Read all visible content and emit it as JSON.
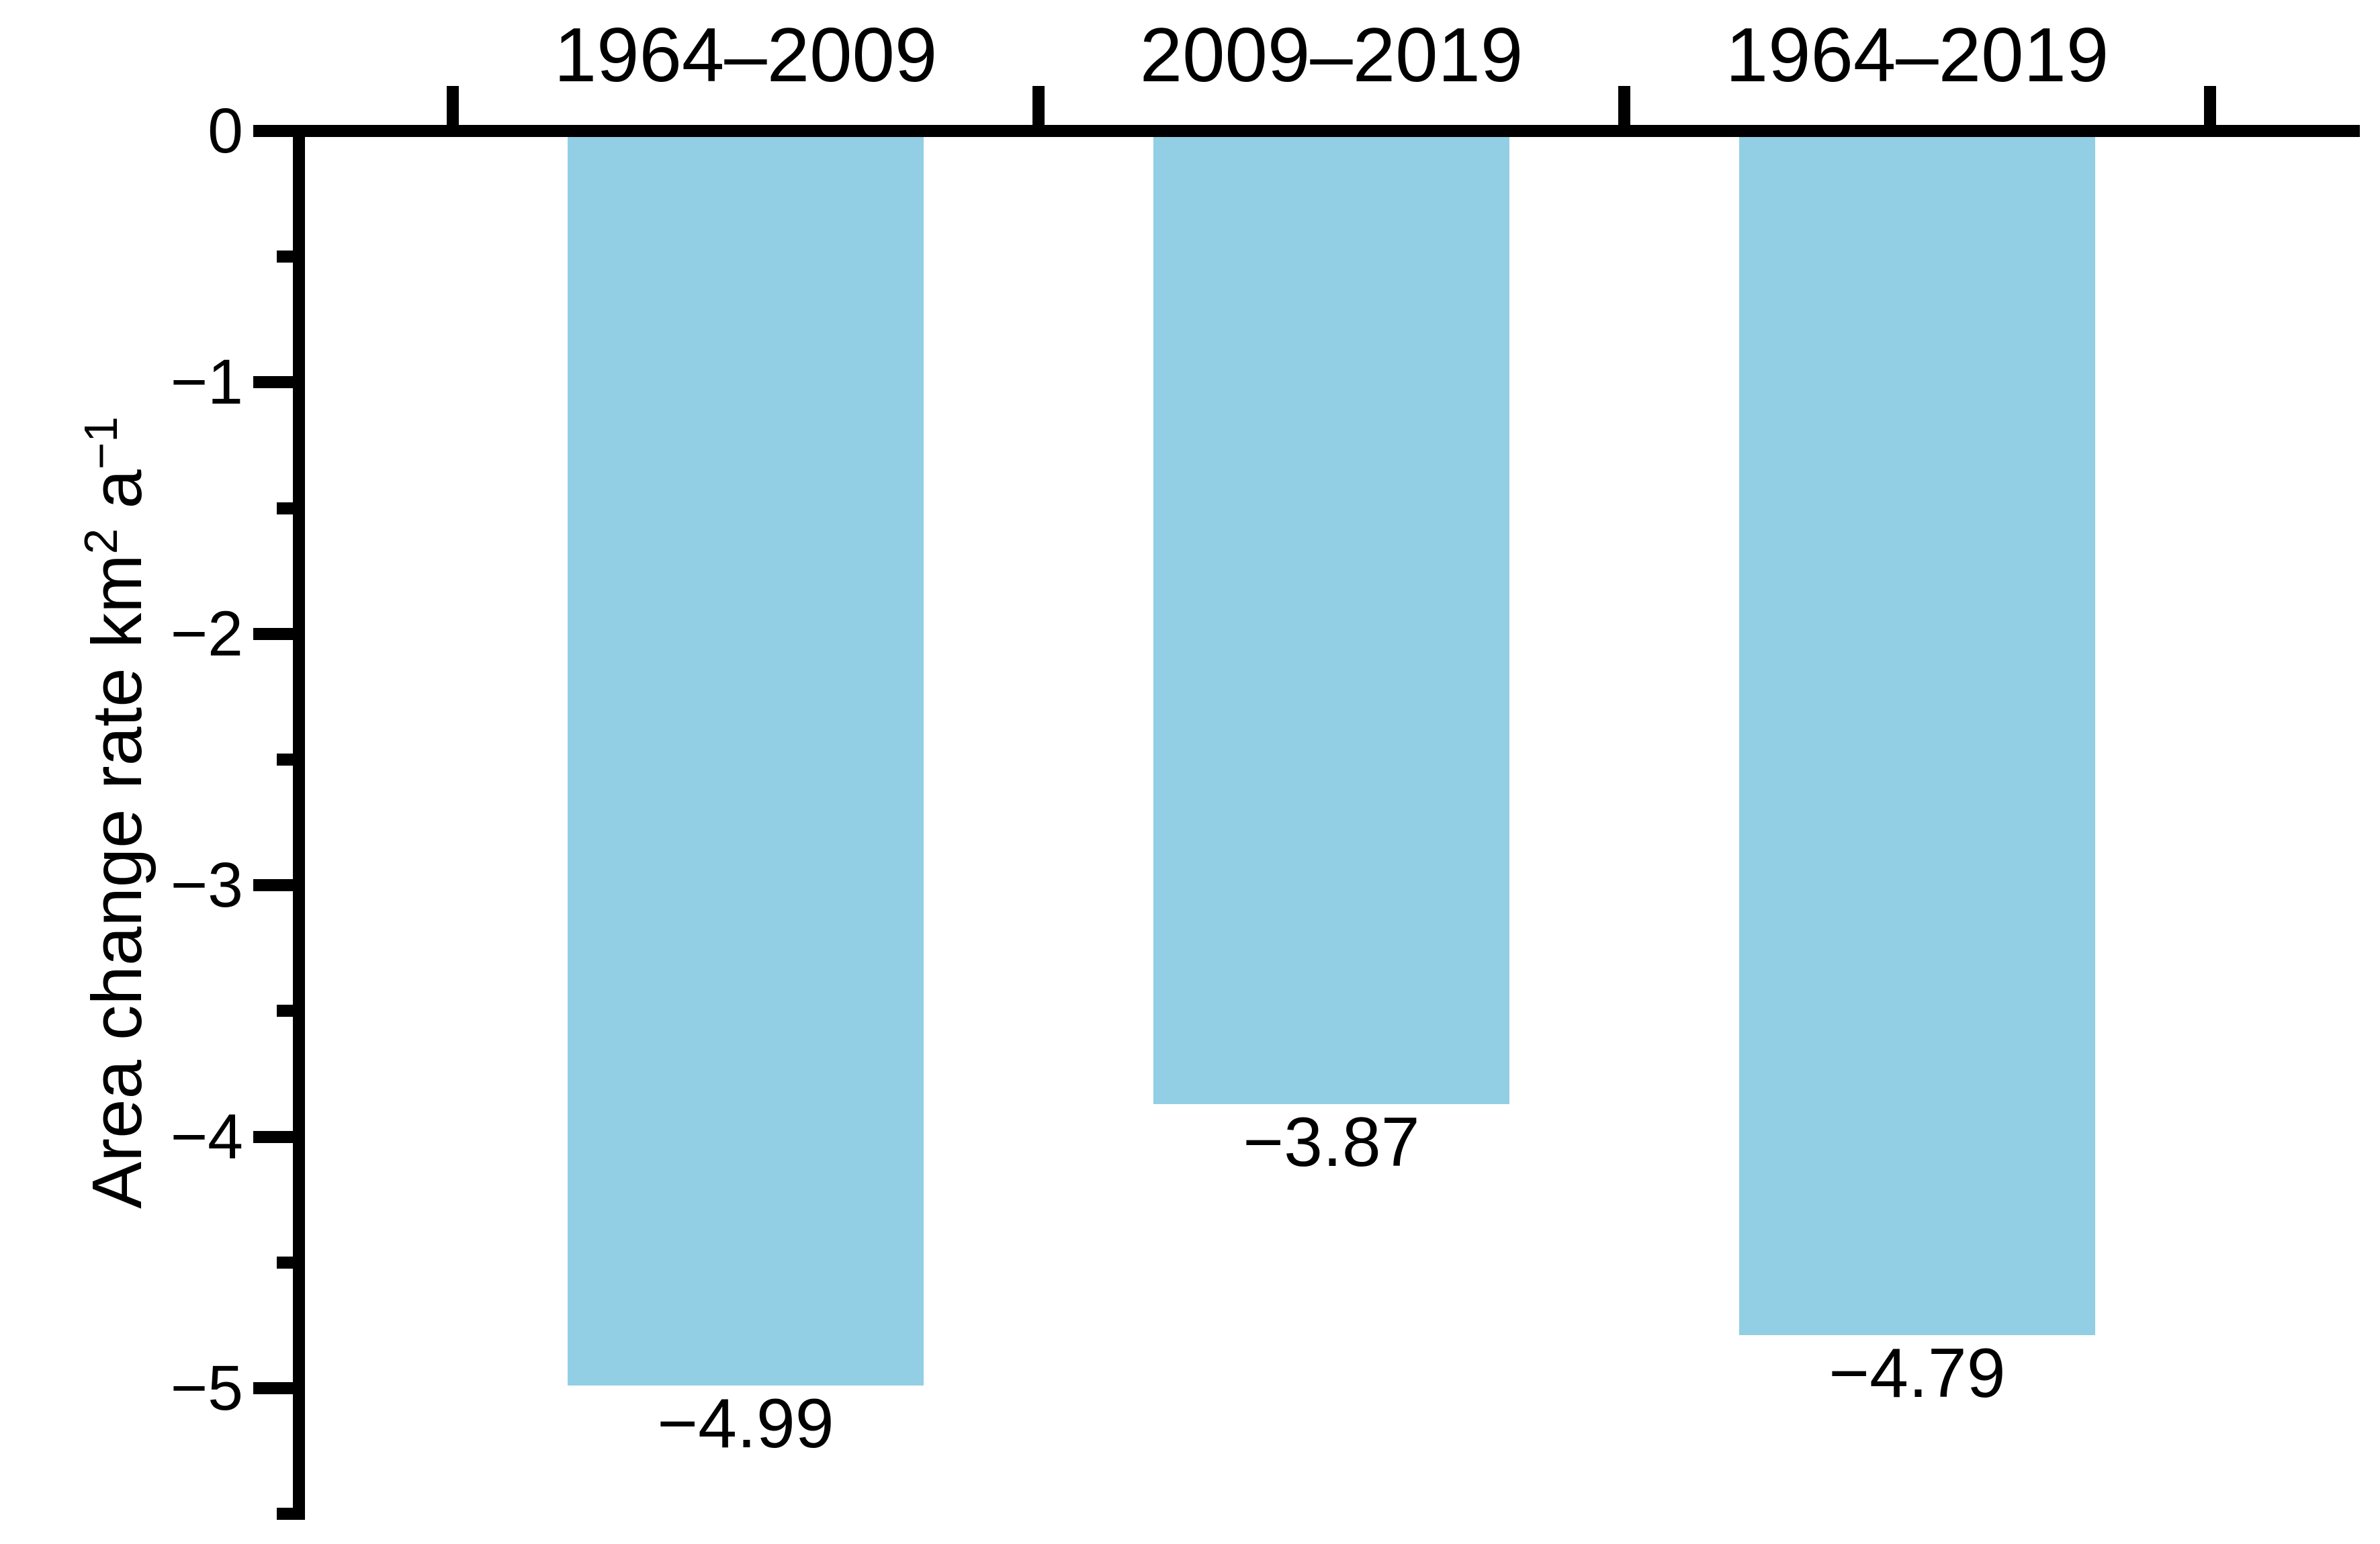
{
  "chart_data": {
    "type": "bar",
    "title": "",
    "categories": [
      "1964–2009",
      "2009–2019",
      "1964–2019"
    ],
    "values": [
      -4.99,
      -3.87,
      -4.79
    ],
    "bar_value_labels": [
      "−4.99",
      "−3.87",
      "−4.79"
    ],
    "ylabel": "Area change rate km² a⁻¹",
    "ylabel_parts": {
      "prefix": "Area change rate km",
      "sup1": "2",
      "mid": " a",
      "sup2": "−1"
    },
    "ylim": [
      0,
      -5.5
    ],
    "ytick_major_values": [
      0,
      -1,
      -2,
      -3,
      -4,
      -5
    ],
    "ytick_major_labels": [
      "0",
      "−1",
      "−2",
      "−3",
      "−4",
      "−5"
    ],
    "ytick_minor_values": [
      -0.5,
      -1.5,
      -2.5,
      -3.5,
      -4.5,
      -5.5
    ],
    "grid": false,
    "legend": "none",
    "x_axis_position": "top",
    "bar_color": "#92CEE4",
    "axis_color": "#000000",
    "background_color": "#ffffff"
  }
}
